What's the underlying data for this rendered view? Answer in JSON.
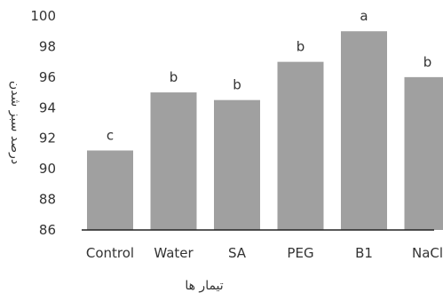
{
  "chart_data": {
    "type": "bar",
    "categories": [
      "Control",
      "Water",
      "SA",
      "PEG",
      "B1",
      "NaCl"
    ],
    "values": [
      91.2,
      95.0,
      94.5,
      97.0,
      99.0,
      96.0
    ],
    "significance_letters": [
      "c",
      "b",
      "b",
      "b",
      "a",
      "b"
    ],
    "xlabel": "تیمار ها",
    "ylabel": "درصد سبز شدن",
    "ylim": [
      86,
      100
    ],
    "yticks": [
      86,
      88,
      90,
      92,
      94,
      96,
      98,
      100
    ],
    "ytick_labels": [
      "86",
      "88",
      "90",
      "92",
      "94",
      "96",
      "98",
      "100"
    ],
    "grid": false,
    "colors": {
      "bar": "#a0a0a0",
      "axis": "#222222",
      "text": "#333333"
    }
  }
}
